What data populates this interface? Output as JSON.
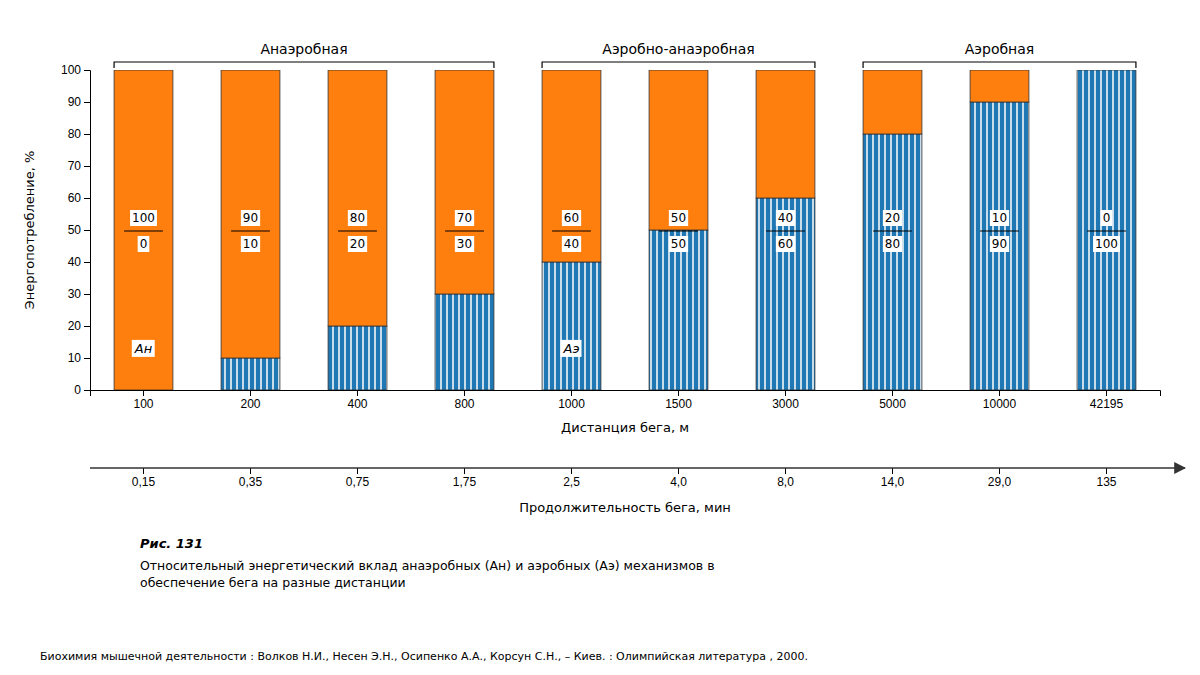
{
  "chart_data": {
    "type": "bar",
    "stacked": true,
    "data_labels": true,
    "grid": false,
    "categories": [
      "100",
      "200",
      "400",
      "800",
      "1000",
      "1500",
      "3000",
      "5000",
      "10000",
      "42195"
    ],
    "series": [
      {
        "values": [
          0,
          10,
          20,
          30,
          40,
          50,
          60,
          80,
          90,
          100
        ]
      },
      {
        "values": [
          100,
          90,
          80,
          70,
          60,
          50,
          40,
          20,
          10,
          0
        ]
      }
    ],
    "ylim": [
      0,
      100
    ],
    "yticks": [
      0,
      10,
      20,
      30,
      40,
      50,
      60,
      70,
      80,
      90,
      100
    ],
    "x_label": "Дистанция бега, м",
    "y_label": "Энергопотребление, %",
    "durations": [
      "0,15",
      "0,35",
      "0,75",
      "1,75",
      "2,5",
      "4,0",
      "8,0",
      "14,0",
      "29,0",
      "135"
    ],
    "durations_label": "Продолжительность бега, мин",
    "zones": [
      {
        "label": "Анаэробная",
        "from": "100",
        "to": "800"
      },
      {
        "label": "Аэробно-анаэробная",
        "from": "1000",
        "to": "3000"
      },
      {
        "label": "Аэробная",
        "from": "5000",
        "to": "42195"
      }
    ],
    "annotations": [
      {
        "text": "Ан",
        "x": "100",
        "y": 13
      },
      {
        "text": "Аэ",
        "x": "1000",
        "y": 13
      }
    ],
    "caption_title": "Рис. 131",
    "caption": "Относительный энергетический вклад анаэробных (Ан) и аэробных (Аэ) механизмов в\nобеспечение бега на разные дистанции",
    "source": "Биохимия мышечной деятельности : Волков Н.И., Несен Э.Н., Осипенко А.А., Корсун С.Н.,  – Киев. : Олимпийская литература , 2000."
  }
}
